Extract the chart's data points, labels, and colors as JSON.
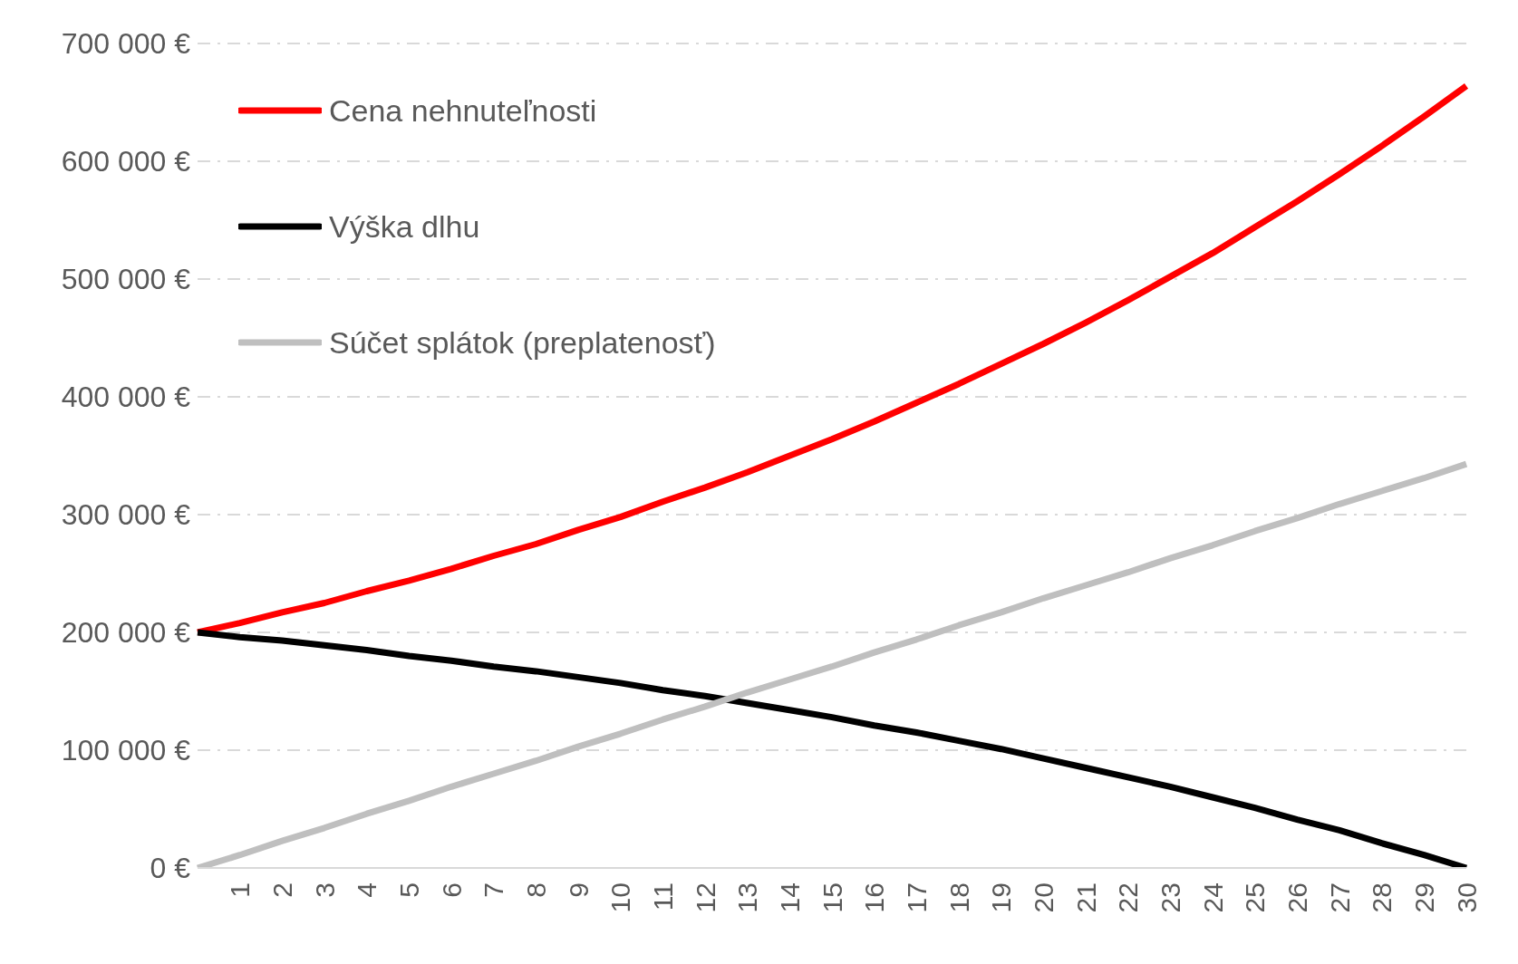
{
  "chart_data": {
    "type": "line",
    "categories": [
      null,
      "1",
      "2",
      "3",
      "4",
      "5",
      "6",
      "7",
      "8",
      "9",
      "10",
      "11",
      "12",
      "13",
      "14",
      "15",
      "16",
      "17",
      "18",
      "19",
      "20",
      "21",
      "22",
      "23",
      "24",
      "25",
      "26",
      "27",
      "28",
      "29",
      "30"
    ],
    "series": [
      {
        "name": "Cena nehnuteľnosti",
        "color": "#ff0000",
        "values": [
          200000,
          208000,
          217000,
          225000,
          235000,
          244000,
          254000,
          265000,
          275000,
          287000,
          298000,
          311000,
          323000,
          336000,
          350000,
          364000,
          379000,
          395000,
          411000,
          428000,
          445000,
          463000,
          482000,
          502000,
          522000,
          544000,
          566000,
          589000,
          613000,
          638000,
          664000
        ]
      },
      {
        "name": "Výška dlhu",
        "color": "#000000",
        "values": [
          200000,
          196000,
          193000,
          189000,
          185000,
          180000,
          176000,
          171000,
          167000,
          162000,
          157000,
          151000,
          146000,
          140000,
          134000,
          128000,
          121000,
          115000,
          108000,
          101000,
          93000,
          85000,
          77000,
          69000,
          60000,
          51000,
          41000,
          32000,
          21000,
          11000,
          0
        ]
      },
      {
        "name": "Súčet splátok (preplatenosť)",
        "color": "#bfbfbf",
        "values": [
          0,
          11000,
          23000,
          34000,
          46000,
          57000,
          69000,
          80000,
          91000,
          103000,
          114000,
          126000,
          137000,
          149000,
          160000,
          171000,
          183000,
          194000,
          206000,
          217000,
          229000,
          240000,
          251000,
          263000,
          274000,
          286000,
          297000,
          309000,
          320000,
          331000,
          343000
        ]
      }
    ],
    "ylim": [
      0,
      700000
    ],
    "yticks": [
      {
        "value": 0,
        "label": "0 €"
      },
      {
        "value": 100000,
        "label": "100 000 €"
      },
      {
        "value": 200000,
        "label": "200 000 €"
      },
      {
        "value": 300000,
        "label": "300 000 €"
      },
      {
        "value": 400000,
        "label": "400 000 €"
      },
      {
        "value": 500000,
        "label": "500 000 €"
      },
      {
        "value": 600000,
        "label": "600 000 €"
      },
      {
        "value": 700000,
        "label": "700 000 €"
      }
    ],
    "grid": "y",
    "legend": "top left",
    "marker": "none",
    "line_style": "solid"
  }
}
